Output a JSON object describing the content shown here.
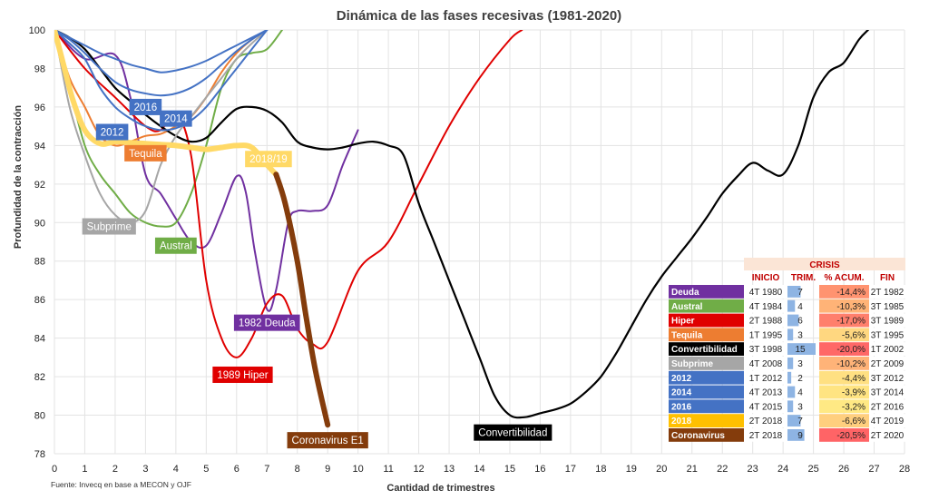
{
  "chart_data": {
    "type": "line",
    "title": "Dinámica de las fases recesivas (1981-2020)",
    "xlabel": "Cantidad de trimestres",
    "ylabel": "Profundidad de la contracción",
    "xlim": [
      0,
      28
    ],
    "ylim": [
      78,
      100
    ],
    "x_ticks": [
      0,
      1,
      2,
      3,
      4,
      5,
      6,
      7,
      8,
      9,
      10,
      11,
      12,
      13,
      14,
      15,
      16,
      17,
      18,
      19,
      20,
      21,
      22,
      23,
      24,
      25,
      26,
      27,
      28
    ],
    "y_ticks": [
      78,
      80,
      82,
      84,
      86,
      88,
      90,
      92,
      94,
      96,
      98,
      100
    ],
    "grid": true,
    "source": "Fuente: Invecq en base a MECON y OJF",
    "series": [
      {
        "name": "Deuda",
        "label": "1982 Deuda",
        "color": "#7030a0",
        "x": [
          0,
          1,
          2,
          2.5,
          3,
          3.5,
          4,
          4.5,
          5,
          5.5,
          6,
          6.3,
          6.6,
          7,
          7.3,
          7.7,
          8,
          8.5,
          9,
          9.5,
          10
        ],
        "y": [
          100,
          98.5,
          98.7,
          96.5,
          92.5,
          91.5,
          90.2,
          89,
          88.8,
          90.5,
          92.4,
          91.6,
          88.5,
          85.5,
          86.5,
          90,
          90.6,
          90.6,
          90.9,
          93,
          94.8
        ]
      },
      {
        "name": "Austral",
        "label": "Austral",
        "color": "#70ad47",
        "x": [
          0,
          0.5,
          1,
          1.5,
          2,
          2.5,
          3,
          3.5,
          4,
          4.5,
          5,
          5.5,
          6,
          6.5,
          7,
          7.5
        ],
        "y": [
          100,
          97,
          94,
          92.5,
          91.5,
          90.5,
          90,
          89.8,
          90,
          91.5,
          94,
          97,
          98.5,
          98.8,
          99,
          100
        ]
      },
      {
        "name": "Hiper",
        "label": "1989 Hiper",
        "color": "#e00000",
        "x": [
          0,
          1,
          2,
          3,
          3.5,
          4,
          4.5,
          5,
          5.5,
          6,
          6.5,
          7,
          7.5,
          8,
          8.5,
          9,
          10,
          11,
          12,
          13,
          14,
          15,
          15.4
        ],
        "y": [
          100,
          98,
          96.5,
          95,
          94.8,
          95.7,
          93.5,
          87,
          84,
          83,
          84,
          85.8,
          86.2,
          84.5,
          83.7,
          83.8,
          87.5,
          89,
          92,
          95,
          97.5,
          99.5,
          100
        ]
      },
      {
        "name": "Tequila",
        "label": "Tequila",
        "color": "#ed7d31",
        "x": [
          0,
          0.5,
          1,
          1.5,
          2,
          2.5,
          3,
          3.5,
          4,
          4.5,
          5,
          5.5,
          6,
          6.5,
          7
        ],
        "y": [
          100,
          97.5,
          96,
          94.5,
          94,
          94.2,
          94.5,
          94.6,
          95,
          95.5,
          96.5,
          97.8,
          98.8,
          99.5,
          100
        ]
      },
      {
        "name": "Convertibilidad",
        "label": "Convertibilidad",
        "color": "#000000",
        "x": [
          0,
          0.5,
          1,
          1.5,
          2,
          2.5,
          3,
          3.5,
          4,
          4.5,
          5,
          5.5,
          6,
          6.5,
          7,
          7.5,
          8,
          8.5,
          9,
          9.5,
          10,
          10.5,
          11,
          11.5,
          12,
          12.5,
          13,
          13.5,
          14,
          14.5,
          15,
          15.5,
          16,
          16.5,
          17,
          17.5,
          18,
          18.5,
          19,
          19.5,
          20,
          20.5,
          21,
          21.5,
          22,
          22.5,
          23,
          23.5,
          24,
          24.5,
          25,
          25.5,
          26,
          26.5,
          26.8
        ],
        "y": [
          100,
          99.6,
          99,
          98,
          97,
          96.3,
          95.6,
          95,
          94.5,
          94.2,
          94.4,
          95.2,
          95.9,
          96,
          95.8,
          95.2,
          94.2,
          93.9,
          93.8,
          93.9,
          94.1,
          94.2,
          94,
          93.5,
          91,
          89,
          87,
          85,
          83,
          81,
          80,
          79.9,
          80.1,
          80.3,
          80.6,
          81.2,
          82,
          83.2,
          84.6,
          86,
          87.2,
          88.2,
          89.2,
          90.3,
          91.5,
          92.4,
          93.1,
          92.7,
          92.5,
          94,
          96.5,
          97.8,
          98.3,
          99.5,
          100
        ]
      },
      {
        "name": "Subprime",
        "label": "Subprime",
        "color": "#a6a6a6",
        "x": [
          0,
          0.5,
          1,
          1.5,
          2,
          2.5,
          3,
          3.5,
          4,
          4.5,
          5,
          5.5,
          6,
          6.5,
          7
        ],
        "y": [
          100,
          96,
          93.5,
          91.5,
          90.4,
          90,
          90.6,
          93,
          94.5,
          95.5,
          96.5,
          97.5,
          98.5,
          99.3,
          100
        ]
      },
      {
        "name": "2012",
        "label": "2012",
        "color": "#4472c4",
        "x": [
          0,
          0.5,
          1,
          1.5,
          2,
          2.5,
          3,
          3.5,
          4,
          4.5,
          5,
          5.5,
          6,
          6.5,
          7
        ],
        "y": [
          100,
          99.3,
          98.5,
          97,
          96,
          95.4,
          95,
          94.8,
          94.9,
          95.3,
          96,
          97,
          98,
          99,
          100
        ]
      },
      {
        "name": "2014",
        "label": "2014",
        "color": "#4472c4",
        "x": [
          0,
          0.5,
          1,
          1.5,
          2,
          2.5,
          3,
          3.5,
          4,
          4.5,
          5,
          5.5,
          6,
          6.5,
          7
        ],
        "y": [
          100,
          99.5,
          98.8,
          98,
          97.3,
          96.9,
          96.7,
          96.6,
          96.7,
          97,
          97.5,
          98.2,
          98.9,
          99.5,
          100
        ]
      },
      {
        "name": "2016",
        "label": "2016",
        "color": "#4472c4",
        "x": [
          0,
          0.5,
          1,
          1.5,
          2,
          2.5,
          3,
          3.5,
          4,
          4.5,
          5,
          5.5,
          6,
          6.5,
          7
        ],
        "y": [
          100,
          99.6,
          99.2,
          98.8,
          98.5,
          98.2,
          98,
          97.8,
          97.9,
          98.1,
          98.4,
          98.8,
          99.2,
          99.6,
          100
        ]
      },
      {
        "name": "2018",
        "label": "2018/19",
        "color": "#ffd966",
        "x": [
          0,
          0.3,
          0.6,
          1,
          1.5,
          2,
          2.5,
          3,
          3.5,
          4,
          4.5,
          5,
          5.5,
          6,
          6.5,
          7,
          7.3
        ],
        "y": [
          100,
          98.2,
          96.4,
          94.8,
          94.1,
          94.2,
          94.15,
          94.1,
          94.05,
          94,
          93.9,
          93.8,
          93.9,
          94,
          93.9,
          93,
          92.5
        ]
      },
      {
        "name": "Coronavirus",
        "label": "Coronavirus E1",
        "color": "#843c0c",
        "x": [
          7.3,
          7.6,
          8,
          8.3,
          8.6,
          9
        ],
        "y": [
          92.5,
          91,
          88,
          85,
          82.3,
          79.5
        ]
      }
    ],
    "annotations": [
      {
        "text": "2016",
        "x": 3,
        "y": 96,
        "color": "#4472c4"
      },
      {
        "text": "2014",
        "x": 4,
        "y": 95.4,
        "color": "#4472c4"
      },
      {
        "text": "2012",
        "x": 1.9,
        "y": 94.7,
        "color": "#4472c4"
      },
      {
        "text": "Tequila",
        "x": 3,
        "y": 93.6,
        "color": "#ed7d31"
      },
      {
        "text": "2018/19",
        "x": 7.05,
        "y": 93.3,
        "color": "#ffd966",
        "dark": true
      },
      {
        "text": "Subprime",
        "x": 1.8,
        "y": 89.8,
        "color": "#a6a6a6"
      },
      {
        "text": "Austral",
        "x": 4,
        "y": 88.8,
        "color": "#70ad47"
      },
      {
        "text": "1982 Deuda",
        "x": 7,
        "y": 84.8,
        "color": "#7030a0"
      },
      {
        "text": "1989 Hiper",
        "x": 6.2,
        "y": 82.1,
        "color": "#e00000"
      },
      {
        "text": "Coronavirus E1",
        "x": 9,
        "y": 78.7,
        "color": "#843c0c"
      },
      {
        "text": "Convertibilidad",
        "x": 15.1,
        "y": 79.1,
        "color": "#000000"
      }
    ],
    "table": {
      "title": "CRISIS",
      "headers": [
        "",
        "INICIO",
        "TRIM.",
        "% ACUM.",
        "FIN"
      ],
      "rows": [
        {
          "name": "Deuda",
          "color": "#7030a0",
          "inicio": "4T 1980",
          "trim": 7,
          "acum": "-14,4%",
          "acum_value": -14.4,
          "fin": "2T 1982"
        },
        {
          "name": "Austral",
          "color": "#70ad47",
          "inicio": "4T 1984",
          "trim": 4,
          "acum": "-10,3%",
          "acum_value": -10.3,
          "fin": "3T 1985"
        },
        {
          "name": "Hiper",
          "color": "#e00000",
          "inicio": "2T 1988",
          "trim": 6,
          "acum": "-17,0%",
          "acum_value": -17.0,
          "fin": "3T 1989"
        },
        {
          "name": "Tequila",
          "color": "#ed7d31",
          "inicio": "1T 1995",
          "trim": 3,
          "acum": "-5,6%",
          "acum_value": -5.6,
          "fin": "3T 1995"
        },
        {
          "name": "Convertibilidad",
          "color": "#000000",
          "inicio": "3T 1998",
          "trim": 15,
          "acum": "-20,0%",
          "acum_value": -20.0,
          "fin": "1T 2002"
        },
        {
          "name": "Subprime",
          "color": "#a6a6a6",
          "inicio": "4T 2008",
          "trim": 3,
          "acum": "-10,2%",
          "acum_value": -10.2,
          "fin": "2T 2009"
        },
        {
          "name": "2012",
          "color": "#4472c4",
          "inicio": "1T 2012",
          "trim": 2,
          "acum": "-4,4%",
          "acum_value": -4.4,
          "fin": "3T 2012"
        },
        {
          "name": "2014",
          "color": "#4472c4",
          "inicio": "4T 2013",
          "trim": 4,
          "acum": "-3,9%",
          "acum_value": -3.9,
          "fin": "3T 2014"
        },
        {
          "name": "2016",
          "color": "#4472c4",
          "inicio": "4T 2015",
          "trim": 3,
          "acum": "-3,2%",
          "acum_value": -3.2,
          "fin": "2T 2016"
        },
        {
          "name": "2018",
          "color": "#ffc000",
          "inicio": "2T 2018",
          "trim": 7,
          "acum": "-6,6%",
          "acum_value": -6.6,
          "fin": "4T 2019"
        },
        {
          "name": "Coronavirus",
          "color": "#843c0c",
          "inicio": "2T 2018",
          "trim": 9,
          "acum": "-20,5%",
          "acum_value": -20.5,
          "fin": "2T 2020"
        }
      ]
    }
  }
}
